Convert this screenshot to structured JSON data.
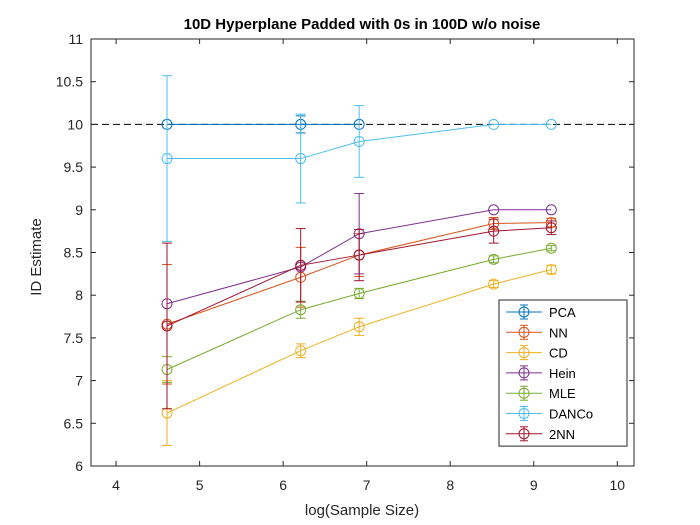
{
  "chart_data": {
    "type": "line",
    "title": "10D Hyperplane Padded with 0s in 100D w/o noise",
    "xlabel": "log(Sample Size)",
    "ylabel": "ID Estimate",
    "xlim": [
      3.7,
      10.2
    ],
    "ylim": [
      6,
      11
    ],
    "xticks": [
      "4",
      "5",
      "6",
      "7",
      "8",
      "9",
      "10"
    ],
    "yticks": [
      "6",
      "6.5",
      "7",
      "7.5",
      "8",
      "8.5",
      "9",
      "9.5",
      "10",
      "10.5",
      "11"
    ],
    "reference_line": {
      "y": 10,
      "style": "dashed",
      "color": "#000000"
    },
    "grid": false,
    "legend_position": "bottom-right",
    "series": [
      {
        "name": "PCA",
        "color": "#0072BD",
        "points": [
          {
            "x": 4.61,
            "y": 10.0,
            "err": 0
          },
          {
            "x": 6.21,
            "y": 10.0,
            "err": 0.1
          },
          {
            "x": 6.91,
            "y": 10.0,
            "err": 0
          }
        ]
      },
      {
        "name": "NN",
        "color": "#D95319",
        "points": [
          {
            "x": 4.61,
            "y": 7.66,
            "err": 0.7
          },
          {
            "x": 6.21,
            "y": 8.21,
            "err": 0.35
          },
          {
            "x": 6.91,
            "y": 8.47,
            "err": 0.25
          },
          {
            "x": 8.52,
            "y": 8.84,
            "err": 0.07
          },
          {
            "x": 9.21,
            "y": 8.85,
            "err": 0.05
          }
        ]
      },
      {
        "name": "CD",
        "color": "#EDB120",
        "points": [
          {
            "x": 4.61,
            "y": 6.62,
            "err": 0.38
          },
          {
            "x": 6.21,
            "y": 7.35,
            "err": 0.08
          },
          {
            "x": 6.91,
            "y": 7.63,
            "err": 0.1
          },
          {
            "x": 8.52,
            "y": 8.13,
            "err": 0.04
          },
          {
            "x": 9.21,
            "y": 8.3,
            "err": 0.05
          }
        ]
      },
      {
        "name": "Hein",
        "color": "#7E2F8E",
        "points": [
          {
            "x": 4.61,
            "y": 7.9,
            "err": 0
          },
          {
            "x": 6.21,
            "y": 8.33,
            "err": 0
          },
          {
            "x": 6.91,
            "y": 8.72,
            "err": 0.47
          },
          {
            "x": 8.52,
            "y": 9.0,
            "err": 0
          },
          {
            "x": 9.21,
            "y": 9.0,
            "err": 0
          }
        ]
      },
      {
        "name": "MLE",
        "color": "#77AC30",
        "points": [
          {
            "x": 4.61,
            "y": 7.13,
            "err": 0.15
          },
          {
            "x": 6.21,
            "y": 7.83,
            "err": 0.1
          },
          {
            "x": 6.91,
            "y": 8.02,
            "err": 0.06
          },
          {
            "x": 8.52,
            "y": 8.42,
            "err": 0.04
          },
          {
            "x": 9.21,
            "y": 8.55,
            "err": 0.03
          }
        ]
      },
      {
        "name": "DANCo",
        "color": "#4DBEEE",
        "points": [
          {
            "x": 4.61,
            "y": 9.6,
            "err": 0.97
          },
          {
            "x": 6.21,
            "y": 9.6,
            "err": 0.52
          },
          {
            "x": 6.91,
            "y": 9.8,
            "err": 0.42
          },
          {
            "x": 8.52,
            "y": 10.0,
            "err": 0
          },
          {
            "x": 9.21,
            "y": 10.0,
            "err": 0
          }
        ]
      },
      {
        "name": "2NN",
        "color": "#A2142F",
        "points": [
          {
            "x": 4.61,
            "y": 7.64,
            "err": 0.97
          },
          {
            "x": 6.21,
            "y": 8.35,
            "err": 0.43
          },
          {
            "x": 6.91,
            "y": 8.47,
            "err": 0.3
          },
          {
            "x": 8.52,
            "y": 8.75,
            "err": 0.14
          },
          {
            "x": 9.21,
            "y": 8.79,
            "err": 0.08
          }
        ]
      }
    ]
  }
}
